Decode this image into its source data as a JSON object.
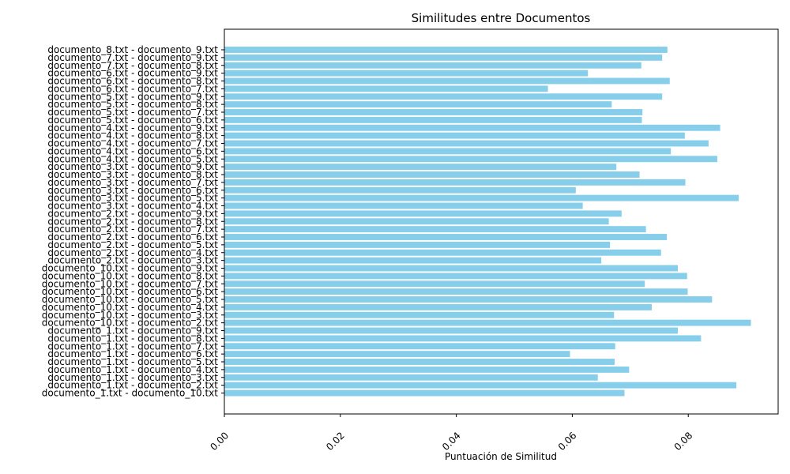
{
  "chart_data": {
    "type": "bar",
    "orientation": "horizontal",
    "title": "Similitudes entre Documentos",
    "xlabel": "Puntuación de Similitud",
    "ylabel": "",
    "xlim": [
      0,
      0.0955
    ],
    "xticks": [
      "0.00",
      "0.02",
      "0.04",
      "0.06",
      "0.08"
    ],
    "grid": false,
    "bar_color": "#87CEEB",
    "categories": [
      "documento_1.txt - documento_10.txt",
      "documento_1.txt - documento_2.txt",
      "documento_1.txt - documento_3.txt",
      "documento_1.txt - documento_4.txt",
      "documento_1.txt - documento_5.txt",
      "documento_1.txt - documento_6.txt",
      "documento_1.txt - documento_7.txt",
      "documento_1.txt - documento_8.txt",
      "documento_1.txt - documento_9.txt",
      "documento_10.txt - documento_2.txt",
      "documento_10.txt - documento_3.txt",
      "documento_10.txt - documento_4.txt",
      "documento_10.txt - documento_5.txt",
      "documento_10.txt - documento_6.txt",
      "documento_10.txt - documento_7.txt",
      "documento_10.txt - documento_8.txt",
      "documento_10.txt - documento_9.txt",
      "documento_2.txt - documento_3.txt",
      "documento_2.txt - documento_4.txt",
      "documento_2.txt - documento_5.txt",
      "documento_2.txt - documento_6.txt",
      "documento_2.txt - documento_7.txt",
      "documento_2.txt - documento_8.txt",
      "documento_2.txt - documento_9.txt",
      "documento_3.txt - documento_4.txt",
      "documento_3.txt - documento_5.txt",
      "documento_3.txt - documento_6.txt",
      "documento_3.txt - documento_7.txt",
      "documento_3.txt - documento_8.txt",
      "documento_3.txt - documento_9.txt",
      "documento_4.txt - documento_5.txt",
      "documento_4.txt - documento_6.txt",
      "documento_4.txt - documento_7.txt",
      "documento_4.txt - documento_8.txt",
      "documento_4.txt - documento_9.txt",
      "documento_5.txt - documento_6.txt",
      "documento_5.txt - documento_7.txt",
      "documento_5.txt - documento_8.txt",
      "documento_5.txt - documento_9.txt",
      "documento_6.txt - documento_7.txt",
      "documento_6.txt - documento_8.txt",
      "documento_6.txt - documento_9.txt",
      "documento_7.txt - documento_8.txt",
      "documento_7.txt - documento_9.txt",
      "documento_8.txt - documento_9.txt"
    ],
    "values": [
      0.069,
      0.0883,
      0.0644,
      0.0698,
      0.0673,
      0.0596,
      0.0674,
      0.0822,
      0.0782,
      0.0908,
      0.0672,
      0.0737,
      0.0841,
      0.0799,
      0.0725,
      0.0798,
      0.0782,
      0.065,
      0.0753,
      0.0665,
      0.0763,
      0.0727,
      0.0663,
      0.0685,
      0.0618,
      0.0887,
      0.0606,
      0.0795,
      0.0716,
      0.0676,
      0.085,
      0.077,
      0.0835,
      0.0794,
      0.0855,
      0.072,
      0.0721,
      0.0668,
      0.0755,
      0.0558,
      0.0768,
      0.0627,
      0.0719,
      0.0755,
      0.0764
    ]
  }
}
